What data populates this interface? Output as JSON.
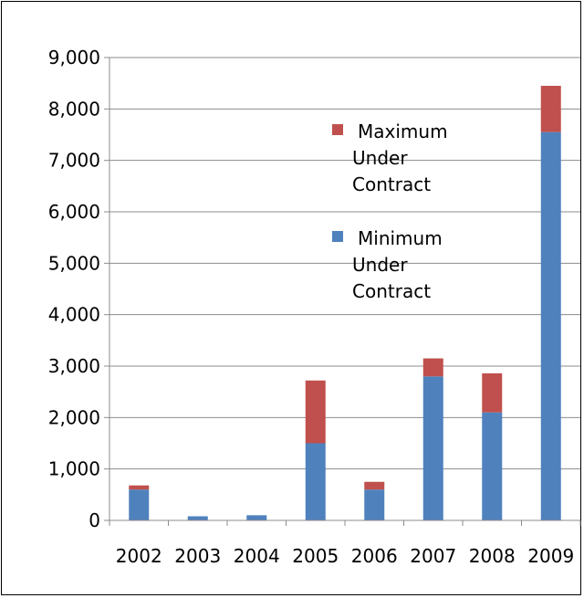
{
  "chart_data": {
    "type": "bar",
    "stacked": true,
    "categories": [
      "2002",
      "2003",
      "2004",
      "2005",
      "2006",
      "2007",
      "2008",
      "2009"
    ],
    "series": [
      {
        "name": "Minimum Under Contract",
        "legend_lines": [
          "Minimum",
          "Under",
          "Contract"
        ],
        "color": "#4F81BD",
        "values": [
          600,
          80,
          100,
          1500,
          600,
          2800,
          2100,
          7550
        ]
      },
      {
        "name": "Maximum Under Contract",
        "legend_lines": [
          "Maximum",
          "Under",
          "Contract"
        ],
        "color": "#C0504D",
        "values": [
          80,
          0,
          0,
          1220,
          150,
          350,
          760,
          900
        ]
      }
    ],
    "ylim": [
      0,
      9000
    ],
    "yticks": [
      "0",
      "1,000",
      "2,000",
      "3,000",
      "4,000",
      "5,000",
      "6,000",
      "7,000",
      "8,000",
      "9,000"
    ],
    "grid": true,
    "legend_position": "top-center"
  }
}
